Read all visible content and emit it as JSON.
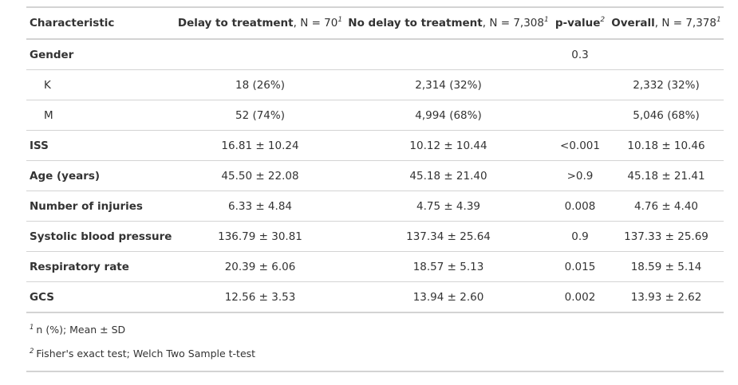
{
  "table": {
    "headers": [
      {
        "bold": "Characteristic",
        "rest": "",
        "sup": ""
      },
      {
        "bold": "Delay to treatment",
        "rest": ", N = 70",
        "sup": "1"
      },
      {
        "bold": "No delay to treatment",
        "rest": ", N = 7,308",
        "sup": "1"
      },
      {
        "bold": "p-value",
        "rest": "",
        "sup": "2"
      },
      {
        "bold": "Overall",
        "rest": ", N = 7,378",
        "sup": "1"
      }
    ],
    "rows": [
      {
        "label": "Gender",
        "delay": "",
        "no_delay": "",
        "p": "0.3",
        "overall": ""
      },
      {
        "label": "K",
        "delay": "18 (26%)",
        "no_delay": "2,314 (32%)",
        "p": "",
        "overall": "2,332 (32%)"
      },
      {
        "label": "M",
        "delay": "52 (74%)",
        "no_delay": "4,994 (68%)",
        "p": "",
        "overall": "5,046 (68%)"
      },
      {
        "label": "ISS",
        "delay": "16.81 ± 10.24",
        "no_delay": "10.12 ± 10.44",
        "p": "<0.001",
        "overall": "10.18 ± 10.46"
      },
      {
        "label": "Age (years)",
        "delay": "45.50 ± 22.08",
        "no_delay": "45.18 ± 21.40",
        "p": ">0.9",
        "overall": "45.18 ± 21.41"
      },
      {
        "label": "Number of injuries",
        "delay": "6.33 ± 4.84",
        "no_delay": "4.75 ± 4.39",
        "p": "0.008",
        "overall": "4.76 ± 4.40"
      },
      {
        "label": "Systolic blood pressure",
        "delay": "136.79 ± 30.81",
        "no_delay": "137.34 ± 25.64",
        "p": "0.9",
        "overall": "137.33 ± 25.69"
      },
      {
        "label": "Respiratory rate",
        "delay": "20.39 ± 6.06",
        "no_delay": "18.57 ± 5.13",
        "p": "0.015",
        "overall": "18.59 ± 5.14"
      },
      {
        "label": "GCS",
        "delay": "12.56 ± 3.53",
        "no_delay": "13.94 ± 2.60",
        "p": "0.002",
        "overall": "13.93 ± 2.62"
      }
    ]
  },
  "footnotes": [
    {
      "mark": "1",
      "text": "n (%); Mean ± SD"
    },
    {
      "mark": "2",
      "text": "Fisher's exact test; Welch Two Sample t-test"
    }
  ]
}
